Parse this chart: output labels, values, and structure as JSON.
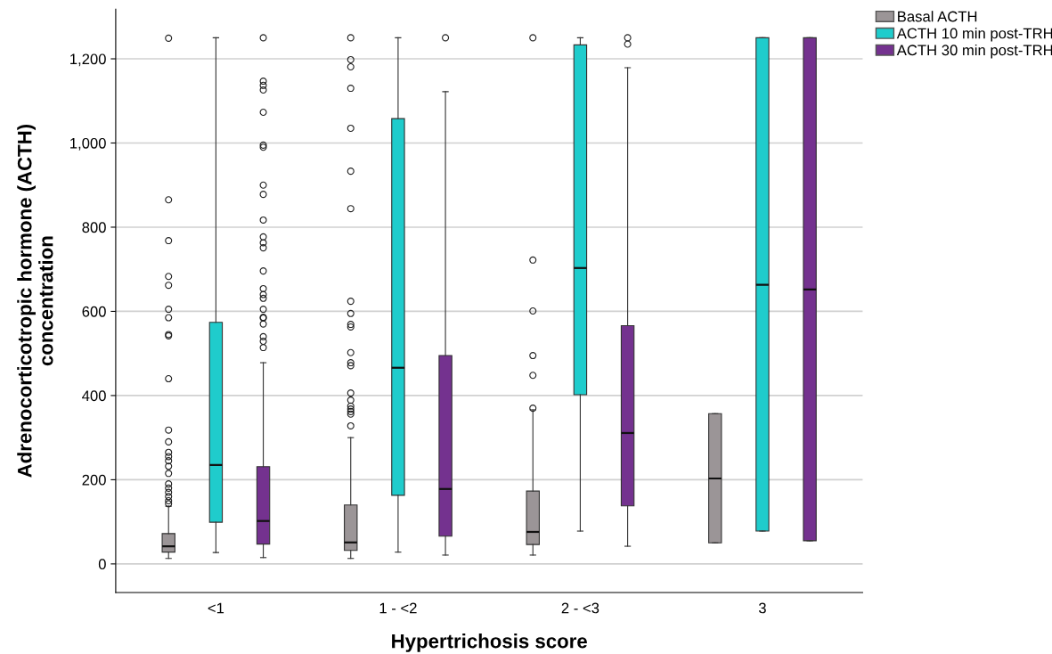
{
  "chart_data": {
    "type": "box",
    "xlabel": "Hypertrichosis score",
    "ylabel": "Adrenocorticotropic hormone (ACTH)\nconcentration",
    "categories": [
      "<1",
      "1 - <2",
      "2 - <3",
      "3"
    ],
    "ylim": [
      -68,
      1318
    ],
    "yticks": [
      0,
      200,
      400,
      600,
      800,
      {
        "value": 1000,
        "label": "1,000"
      },
      {
        "value": 1200,
        "label": "1,200"
      }
    ],
    "grid": "y",
    "legend": "top right",
    "series": [
      {
        "name": "Basal ACTH",
        "color": "#9b9597",
        "boxes": [
          {
            "low": 13,
            "q1": 28,
            "median": 42,
            "q3": 72,
            "high": 137,
            "outliers": [
              143,
              150,
              160,
              170,
              180,
              190,
              215,
              232,
              245,
              255,
              265,
              290,
              318,
              440,
              542,
              545,
              585,
              605,
              662,
              683,
              768,
              865,
              1249
            ]
          },
          {
            "low": 13,
            "q1": 32,
            "median": 51,
            "q3": 140,
            "high": 300,
            "outliers": [
              328,
              356,
              362,
              368,
              375,
              389,
              406,
              471,
              478,
              502,
              563,
              569,
              595,
              624,
              844,
              933,
              1035,
              1130,
              1181,
              1198,
              1250
            ]
          },
          {
            "low": 21,
            "q1": 46,
            "median": 76,
            "q3": 173,
            "high": 366,
            "outliers": [
              370,
              448,
              495,
              601,
              722,
              1250
            ]
          },
          {
            "low": 50,
            "q1": 50,
            "median": 203,
            "q3": 357,
            "high": 357
          }
        ]
      },
      {
        "name": "ACTH 10 min post-TRH",
        "color": "#1fcccc",
        "boxes": [
          {
            "low": 27,
            "q1": 99,
            "median": 235,
            "q3": 574,
            "high": 1250
          },
          {
            "low": 28,
            "q1": 163,
            "median": 466,
            "q3": 1058,
            "high": 1250
          },
          {
            "low": 78,
            "q1": 402,
            "median": 703,
            "q3": 1233,
            "high": 1250
          },
          {
            "low": 78,
            "q1": 78,
            "median": 663,
            "q3": 1250,
            "high": 1250
          }
        ]
      },
      {
        "name": "ACTH 30 min post-TRH",
        "color": "#74328f",
        "boxes": [
          {
            "low": 15,
            "q1": 47,
            "median": 102,
            "q3": 231,
            "high": 478,
            "outliers": [
              514,
              529,
              540,
              570,
              584,
              586,
              605,
              631,
              640,
              654,
              696,
              751,
              763,
              777,
              817,
              878,
              900,
              990,
              995,
              1073,
              1126,
              1137,
              1147,
              1250
            ]
          },
          {
            "low": 21,
            "q1": 66,
            "median": 178,
            "q3": 495,
            "high": 1122,
            "outliers": [
              1250
            ]
          },
          {
            "low": 42,
            "q1": 138,
            "median": 311,
            "q3": 566,
            "high": 1179,
            "outliers": [
              1235,
              1250
            ]
          },
          {
            "low": 55,
            "q1": 55,
            "median": 652,
            "q3": 1250,
            "high": 1250
          }
        ]
      }
    ]
  }
}
